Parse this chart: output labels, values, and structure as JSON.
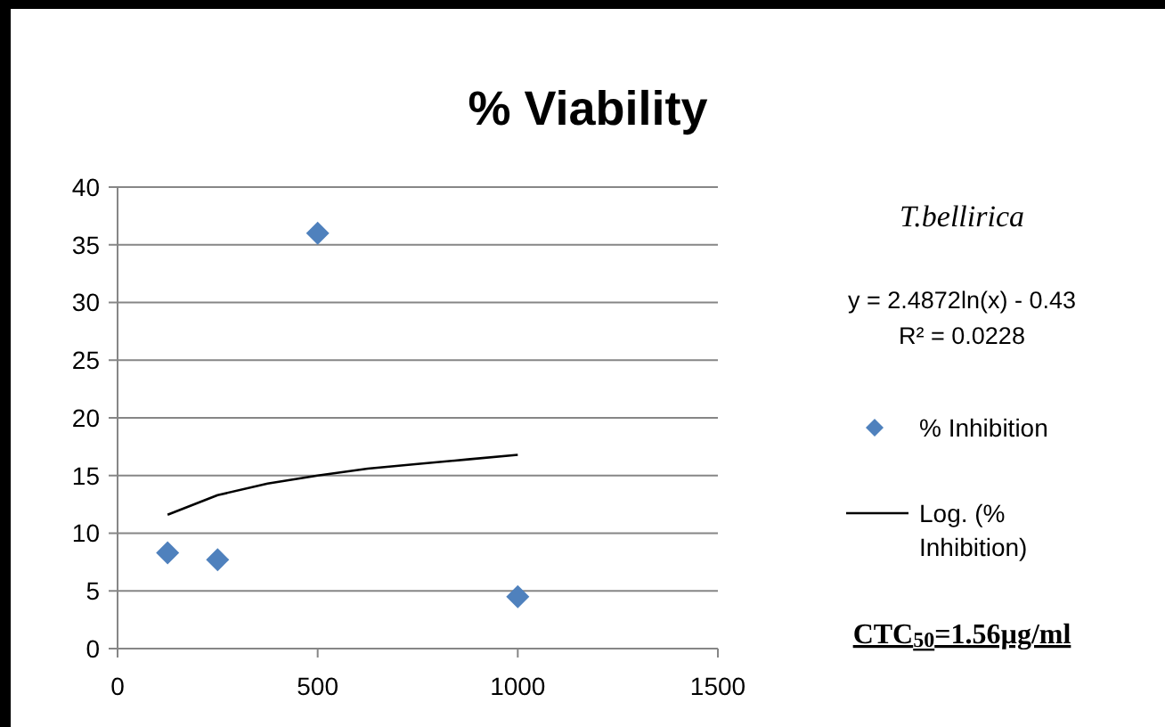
{
  "chart_data": {
    "type": "scatter",
    "title": "% Viability",
    "xlim": [
      0,
      1500
    ],
    "xticks": [
      0,
      500,
      1000,
      1500
    ],
    "ylim": [
      0,
      40
    ],
    "yticks": [
      0,
      5,
      10,
      15,
      20,
      25,
      30,
      35,
      40
    ],
    "grid": "y",
    "legend": "right",
    "marker": "diamond",
    "series": [
      {
        "name": "% Inhibition",
        "color": "#4f81bd",
        "x": [
          125,
          250,
          500,
          1000
        ],
        "values": [
          8.3,
          7.7,
          36,
          4.5
        ]
      },
      {
        "name": "Log. (% Inhibition)",
        "type": "line",
        "color": "#000000",
        "line_style": "solid",
        "marker": "none",
        "x": [
          125,
          250,
          375,
          500,
          625,
          750,
          875,
          1000
        ],
        "values": [
          11.6,
          13.3,
          14.3,
          15.0,
          15.6,
          16.0,
          16.4,
          16.8
        ]
      }
    ],
    "annotations": [
      "T.bellirica",
      "y = 2.4872ln(x) - 0.43",
      "R² = 0.0228",
      "CTC$_{50}$=1.56µg/ml"
    ]
  }
}
